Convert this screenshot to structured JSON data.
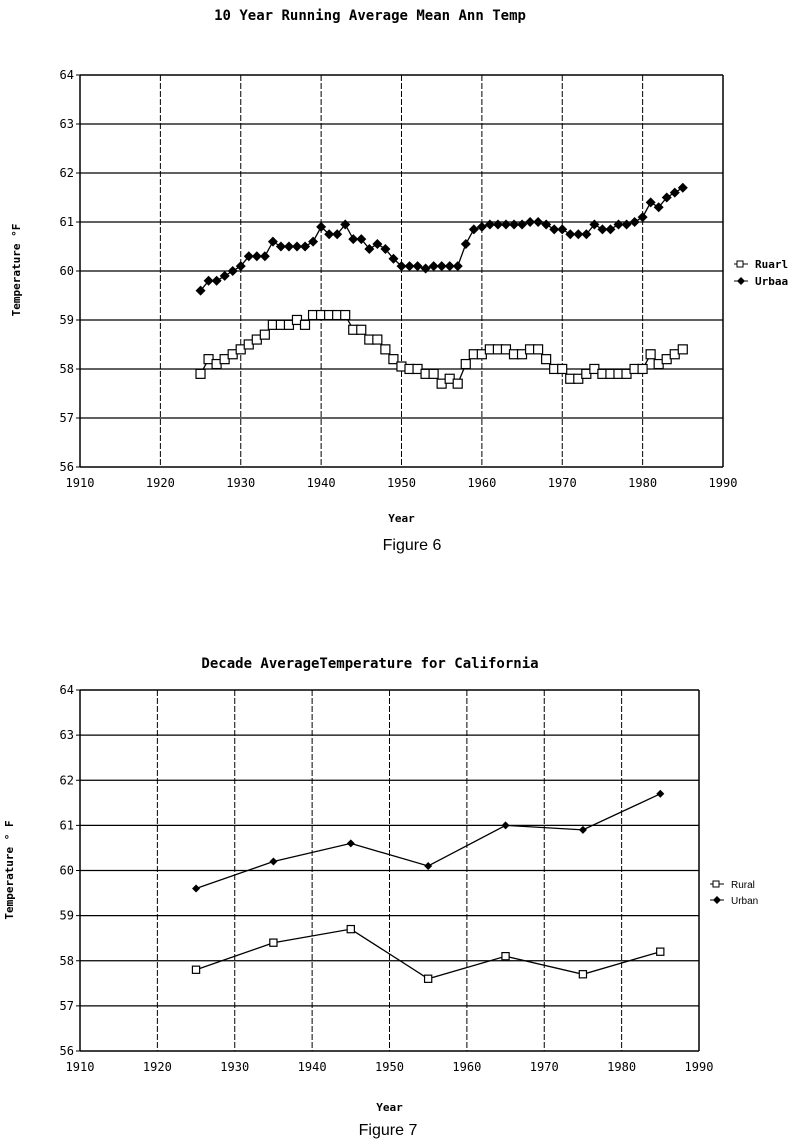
{
  "chart_data": [
    {
      "type": "line",
      "title": "10 Year Running Average Mean Ann Temp",
      "xlabel": "Year",
      "ylabel": "Temperature °F",
      "caption": "Figure 6",
      "xlim": [
        1910,
        1990
      ],
      "ylim": [
        56,
        64
      ],
      "xticks": [
        "1910",
        "1920",
        "1930",
        "1940",
        "1950",
        "1960",
        "1970",
        "1980",
        "1990"
      ],
      "yticks": [
        "56",
        "57",
        "58",
        "59",
        "60",
        "61",
        "62",
        "63",
        "64"
      ],
      "grid": true,
      "legend_position": "right",
      "x": [
        1925,
        1926,
        1927,
        1928,
        1929,
        1930,
        1931,
        1932,
        1933,
        1934,
        1935,
        1936,
        1937,
        1938,
        1939,
        1940,
        1941,
        1942,
        1943,
        1944,
        1945,
        1946,
        1947,
        1948,
        1949,
        1950,
        1951,
        1952,
        1953,
        1954,
        1955,
        1956,
        1957,
        1958,
        1959,
        1960,
        1961,
        1962,
        1963,
        1964,
        1965,
        1966,
        1967,
        1968,
        1969,
        1970,
        1971,
        1972,
        1973,
        1974,
        1975,
        1976,
        1977,
        1978,
        1979,
        1980,
        1981,
        1982,
        1983,
        1984,
        1985
      ],
      "series": [
        {
          "name": "Ruarl",
          "marker": "square",
          "values": [
            57.9,
            58.2,
            58.1,
            58.2,
            58.3,
            58.4,
            58.5,
            58.6,
            58.7,
            58.9,
            58.9,
            58.9,
            59.0,
            58.9,
            59.1,
            59.1,
            59.1,
            59.1,
            59.1,
            58.8,
            58.8,
            58.6,
            58.6,
            58.4,
            58.2,
            58.05,
            58.0,
            58.0,
            57.9,
            57.9,
            57.7,
            57.8,
            57.7,
            58.1,
            58.3,
            58.3,
            58.4,
            58.4,
            58.4,
            58.3,
            58.3,
            58.4,
            58.4,
            58.2,
            58.0,
            58.0,
            57.8,
            57.8,
            57.9,
            58.0,
            57.9,
            57.9,
            57.9,
            57.9,
            58.0,
            58.0,
            58.3,
            58.1,
            58.2,
            58.3,
            58.4
          ]
        },
        {
          "name": "Urbaa",
          "marker": "diamond",
          "values": [
            59.6,
            59.8,
            59.8,
            59.9,
            60.0,
            60.1,
            60.3,
            60.3,
            60.3,
            60.6,
            60.5,
            60.5,
            60.5,
            60.5,
            60.6,
            60.9,
            60.75,
            60.75,
            60.95,
            60.65,
            60.65,
            60.45,
            60.55,
            60.45,
            60.25,
            60.1,
            60.1,
            60.1,
            60.05,
            60.1,
            60.1,
            60.1,
            60.1,
            60.55,
            60.85,
            60.9,
            60.95,
            60.95,
            60.95,
            60.95,
            60.95,
            61.0,
            61.0,
            60.95,
            60.85,
            60.85,
            60.75,
            60.75,
            60.75,
            60.95,
            60.85,
            60.85,
            60.95,
            60.95,
            61.0,
            61.1,
            61.4,
            61.3,
            61.5,
            61.6,
            61.7
          ]
        }
      ]
    },
    {
      "type": "line",
      "title": "Decade AverageTemperature for California",
      "xlabel": "Year",
      "ylabel": "Temperature ° F",
      "caption": "Figure 7",
      "xlim": [
        1910,
        1990
      ],
      "ylim": [
        56,
        64
      ],
      "xticks": [
        "1910",
        "1920",
        "1930",
        "1940",
        "1950",
        "1960",
        "1970",
        "1980",
        "1990"
      ],
      "yticks": [
        "56",
        "57",
        "58",
        "59",
        "60",
        "61",
        "62",
        "63",
        "64"
      ],
      "grid": true,
      "legend_position": "right",
      "x": [
        1925,
        1935,
        1945,
        1955,
        1965,
        1975,
        1985
      ],
      "series": [
        {
          "name": "Rural",
          "marker": "square",
          "values": [
            57.8,
            58.4,
            58.7,
            57.6,
            58.1,
            57.7,
            58.2
          ]
        },
        {
          "name": "Urban",
          "marker": "diamond",
          "values": [
            59.6,
            60.2,
            60.6,
            60.1,
            61.0,
            60.9,
            61.7
          ]
        }
      ]
    }
  ]
}
